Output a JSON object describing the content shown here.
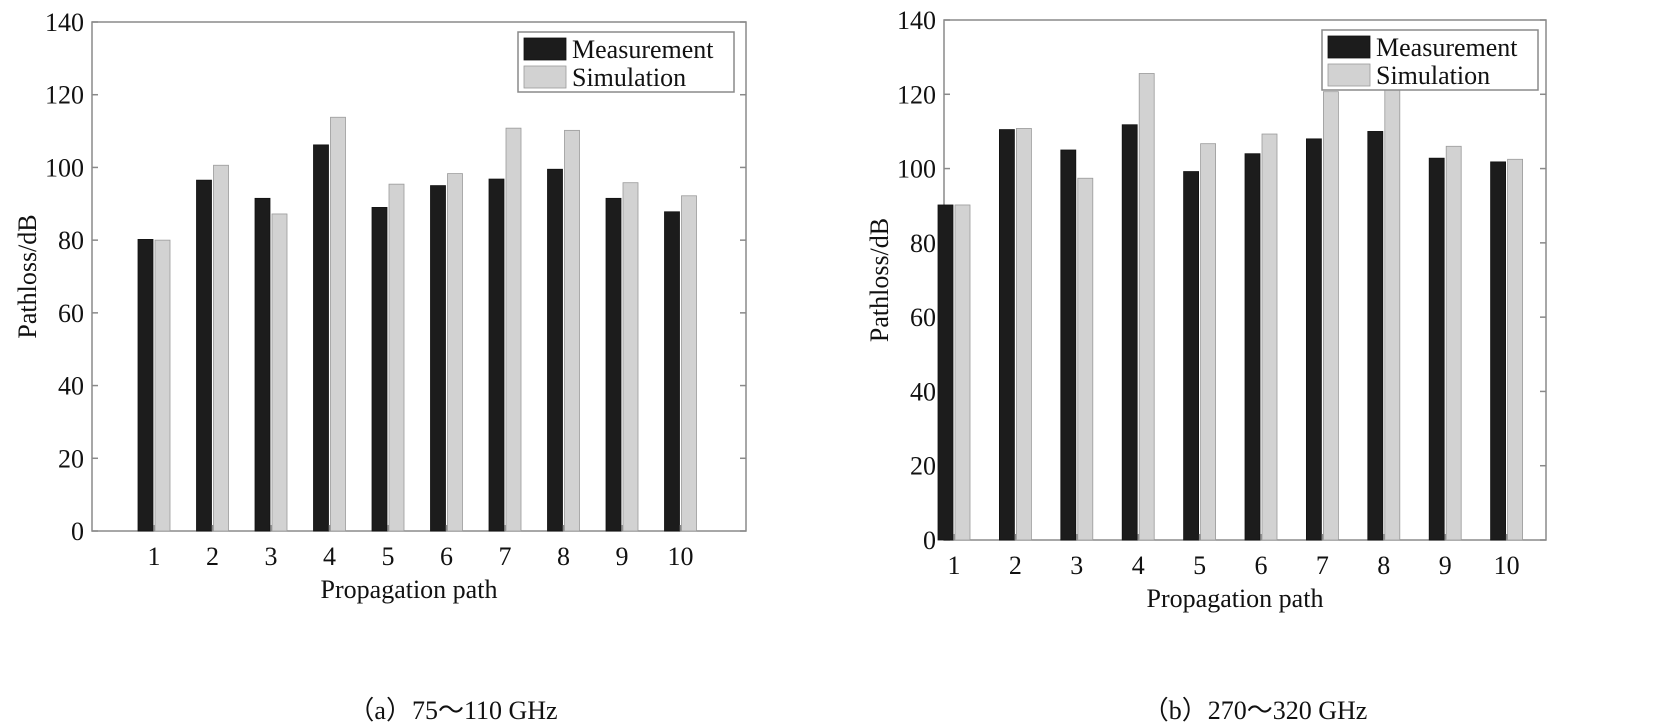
{
  "colors": {
    "measurement": "#1c1c1c",
    "simulation": "#d2d2d2",
    "axis": "#8a8a8a"
  },
  "chart_data": [
    {
      "type": "bar",
      "caption": "（a）75～110 GHz",
      "xlabel": "Propagation path",
      "ylabel": "Pathloss/dB",
      "ylim": [
        0,
        140
      ],
      "yticks": [
        0,
        20,
        40,
        60,
        80,
        100,
        120,
        140
      ],
      "categories": [
        "1",
        "2",
        "3",
        "4",
        "5",
        "6",
        "7",
        "8",
        "9",
        "10"
      ],
      "legend_position": "top-right",
      "series": [
        {
          "name": "Measurement",
          "values": [
            80.2,
            96.5,
            91.5,
            106.2,
            89.0,
            95.0,
            96.8,
            99.5,
            91.5,
            87.8
          ]
        },
        {
          "name": "Simulation",
          "values": [
            80.0,
            100.6,
            87.2,
            113.8,
            95.4,
            98.3,
            110.8,
            110.2,
            95.8,
            92.2
          ]
        }
      ]
    },
    {
      "type": "bar",
      "caption": "（b）270～320 GHz",
      "xlabel": "Propagation path",
      "ylabel": "Pathloss/dB",
      "ylim": [
        0,
        140
      ],
      "yticks": [
        0,
        20,
        40,
        60,
        80,
        100,
        120,
        140
      ],
      "categories": [
        "1",
        "2",
        "3",
        "4",
        "5",
        "6",
        "7",
        "8",
        "9",
        "10"
      ],
      "legend_position": "top-right",
      "series": [
        {
          "name": "Measurement",
          "values": [
            90.2,
            110.5,
            105.0,
            111.8,
            99.2,
            104.0,
            108.0,
            110.0,
            102.8,
            101.8
          ]
        },
        {
          "name": "Simulation",
          "values": [
            90.2,
            110.8,
            97.4,
            125.6,
            106.7,
            109.3,
            120.7,
            122.0,
            106.0,
            102.5
          ]
        }
      ]
    }
  ]
}
